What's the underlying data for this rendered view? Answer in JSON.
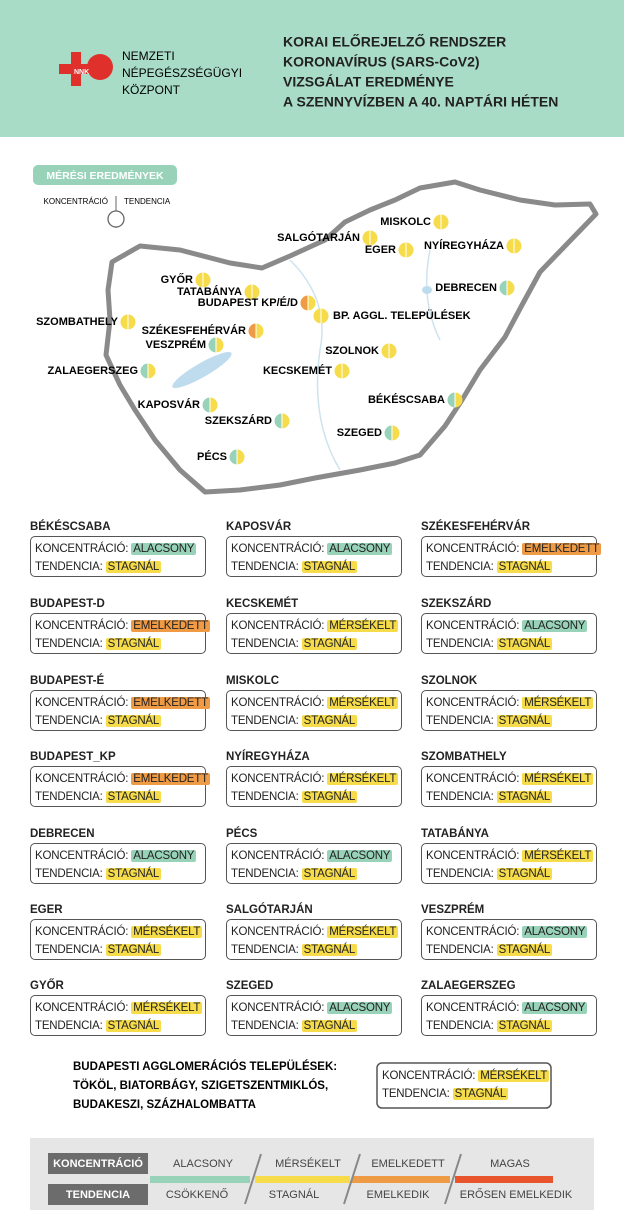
{
  "header": {
    "logo_text": "NNK",
    "organization": [
      "NEMZETI",
      "NÉPEGÉSZSÉGÜGYI",
      "KÖZPONT"
    ],
    "title": [
      "KORAI ELŐREJELZŐ RENDSZER",
      "KORONAVÍRUS (SARS-CoV2)",
      "VIZSGÁLAT EREDMÉNYE",
      "A SZENNYVÍZBEN A 40. NAPTÁRI HÉTEN"
    ]
  },
  "map": {
    "badge": "MÉRÉSI EREDMÉNYEK",
    "key": {
      "left": "KONCENTRÁCIÓ",
      "right": "TENDENCIA"
    },
    "cities": [
      {
        "label": "MISKOLC",
        "colors": [
          "#f6dc4a",
          "#f6dc4a"
        ]
      },
      {
        "label": "SALGÓTARJÁN",
        "colors": [
          "#f6dc4a",
          "#f6dc4a"
        ]
      },
      {
        "label": "EGER",
        "colors": [
          "#f6dc4a",
          "#f6dc4a"
        ]
      },
      {
        "label": "NYÍREGYHÁZA",
        "colors": [
          "#f6dc4a",
          "#f6dc4a"
        ]
      },
      {
        "label": "GYŐR",
        "colors": [
          "#f6dc4a",
          "#f6dc4a"
        ]
      },
      {
        "label": "TATABÁNYA",
        "colors": [
          "#f6dc4a",
          "#f6dc4a"
        ]
      },
      {
        "label": "BUDAPEST KP/É/D",
        "colors": [
          "#ef9a45",
          "#f6dc4a"
        ]
      },
      {
        "label": "BP. AGGL. TELEPÜLÉSEK",
        "colors": [
          "#f6dc4a",
          "#f6dc4a"
        ]
      },
      {
        "label": "DEBRECEN",
        "colors": [
          "#98d3b9",
          "#f6dc4a"
        ]
      },
      {
        "label": "SZOMBATHELY",
        "colors": [
          "#f6dc4a",
          "#f6dc4a"
        ]
      },
      {
        "label": "SZÉKESFEHÉRVÁR",
        "colors": [
          "#ef9a45",
          "#f6dc4a"
        ]
      },
      {
        "label": "VESZPRÉM",
        "colors": [
          "#98d3b9",
          "#f6dc4a"
        ]
      },
      {
        "label": "SZOLNOK",
        "colors": [
          "#f6dc4a",
          "#f6dc4a"
        ]
      },
      {
        "label": "ZALAEGERSZEG",
        "colors": [
          "#98d3b9",
          "#f6dc4a"
        ]
      },
      {
        "label": "KECSKEMÉT",
        "colors": [
          "#f6dc4a",
          "#f6dc4a"
        ]
      },
      {
        "label": "BÉKÉSCSABA",
        "colors": [
          "#98d3b9",
          "#f6dc4a"
        ]
      },
      {
        "label": "KAPOSVÁR",
        "colors": [
          "#98d3b9",
          "#f6dc4a"
        ]
      },
      {
        "label": "SZEKSZÁRD",
        "colors": [
          "#98d3b9",
          "#f6dc4a"
        ]
      },
      {
        "label": "SZEGED",
        "colors": [
          "#98d3b9",
          "#f6dc4a"
        ]
      },
      {
        "label": "PÉCS",
        "colors": [
          "#98d3b9",
          "#f6dc4a"
        ]
      }
    ]
  },
  "card_labels": {
    "concentration": "KONCENTRÁCIÓ:",
    "tendency": "TENDENCIA:"
  },
  "cards": [
    {
      "city": "BÉKÉSCSABA",
      "concentration": "ALACSONY",
      "tendency": "STAGNÁL"
    },
    {
      "city": "KAPOSVÁR",
      "concentration": "ALACSONY",
      "tendency": "STAGNÁL"
    },
    {
      "city": "SZÉKESFEHÉRVÁR",
      "concentration": "EMELKEDETT",
      "tendency": "STAGNÁL"
    },
    {
      "city": "BUDAPEST-D",
      "concentration": "EMELKEDETT",
      "tendency": "STAGNÁL"
    },
    {
      "city": "KECSKEMÉT",
      "concentration": "MÉRSÉKELT",
      "tendency": "STAGNÁL"
    },
    {
      "city": "SZEKSZÁRD",
      "concentration": "ALACSONY",
      "tendency": "STAGNÁL"
    },
    {
      "city": "BUDAPEST-É",
      "concentration": "EMELKEDETT",
      "tendency": "STAGNÁL"
    },
    {
      "city": "MISKOLC",
      "concentration": "MÉRSÉKELT",
      "tendency": "STAGNÁL"
    },
    {
      "city": "SZOLNOK",
      "concentration": "MÉRSÉKELT",
      "tendency": "STAGNÁL"
    },
    {
      "city": "BUDAPEST_KP",
      "concentration": "EMELKEDETT",
      "tendency": "STAGNÁL"
    },
    {
      "city": "NYÍREGYHÁZA",
      "concentration": "MÉRSÉKELT",
      "tendency": "STAGNÁL"
    },
    {
      "city": "SZOMBATHELY",
      "concentration": "MÉRSÉKELT",
      "tendency": "STAGNÁL"
    },
    {
      "city": "DEBRECEN",
      "concentration": "ALACSONY",
      "tendency": "STAGNÁL"
    },
    {
      "city": "PÉCS",
      "concentration": "ALACSONY",
      "tendency": "STAGNÁL"
    },
    {
      "city": "TATABÁNYA",
      "concentration": "MÉRSÉKELT",
      "tendency": "STAGNÁL"
    },
    {
      "city": "EGER",
      "concentration": "MÉRSÉKELT",
      "tendency": "STAGNÁL"
    },
    {
      "city": "SALGÓTARJÁN",
      "concentration": "MÉRSÉKELT",
      "tendency": "STAGNÁL"
    },
    {
      "city": "VESZPRÉM",
      "concentration": "ALACSONY",
      "tendency": "STAGNÁL"
    },
    {
      "city": "GYŐR",
      "concentration": "MÉRSÉKELT",
      "tendency": "STAGNÁL"
    },
    {
      "city": "SZEGED",
      "concentration": "ALACSONY",
      "tendency": "STAGNÁL"
    },
    {
      "city": "ZALAEGERSZEG",
      "concentration": "ALACSONY",
      "tendency": "STAGNÁL"
    }
  ],
  "agglomeration": {
    "lines": [
      "BUDAPESTI AGGLOMERÁCIÓS TELEPÜLÉSEK:",
      "TÖKÖL, BIATORBÁGY, SZIGETSZENTMIKLÓS,",
      "BUDAKESZI, SZÁZHALOMBATTA"
    ],
    "concentration": "MÉRSÉKELT",
    "tendency": "STAGNÁL"
  },
  "legend": {
    "concentration": {
      "label": "KONCENTRÁCIÓ",
      "levels": [
        "ALACSONY",
        "MÉRSÉKELT",
        "EMELKEDETT",
        "MAGAS"
      ]
    },
    "tendency": {
      "label": "TENDENCIA",
      "levels": [
        "CSÖKKENŐ",
        "STAGNÁL",
        "EMELKEDIK",
        "ERŐSEN EMELKEDIK"
      ]
    },
    "colors": [
      "#98d3b9",
      "#f6dc4a",
      "#ef9a45",
      "#e8552c"
    ]
  }
}
